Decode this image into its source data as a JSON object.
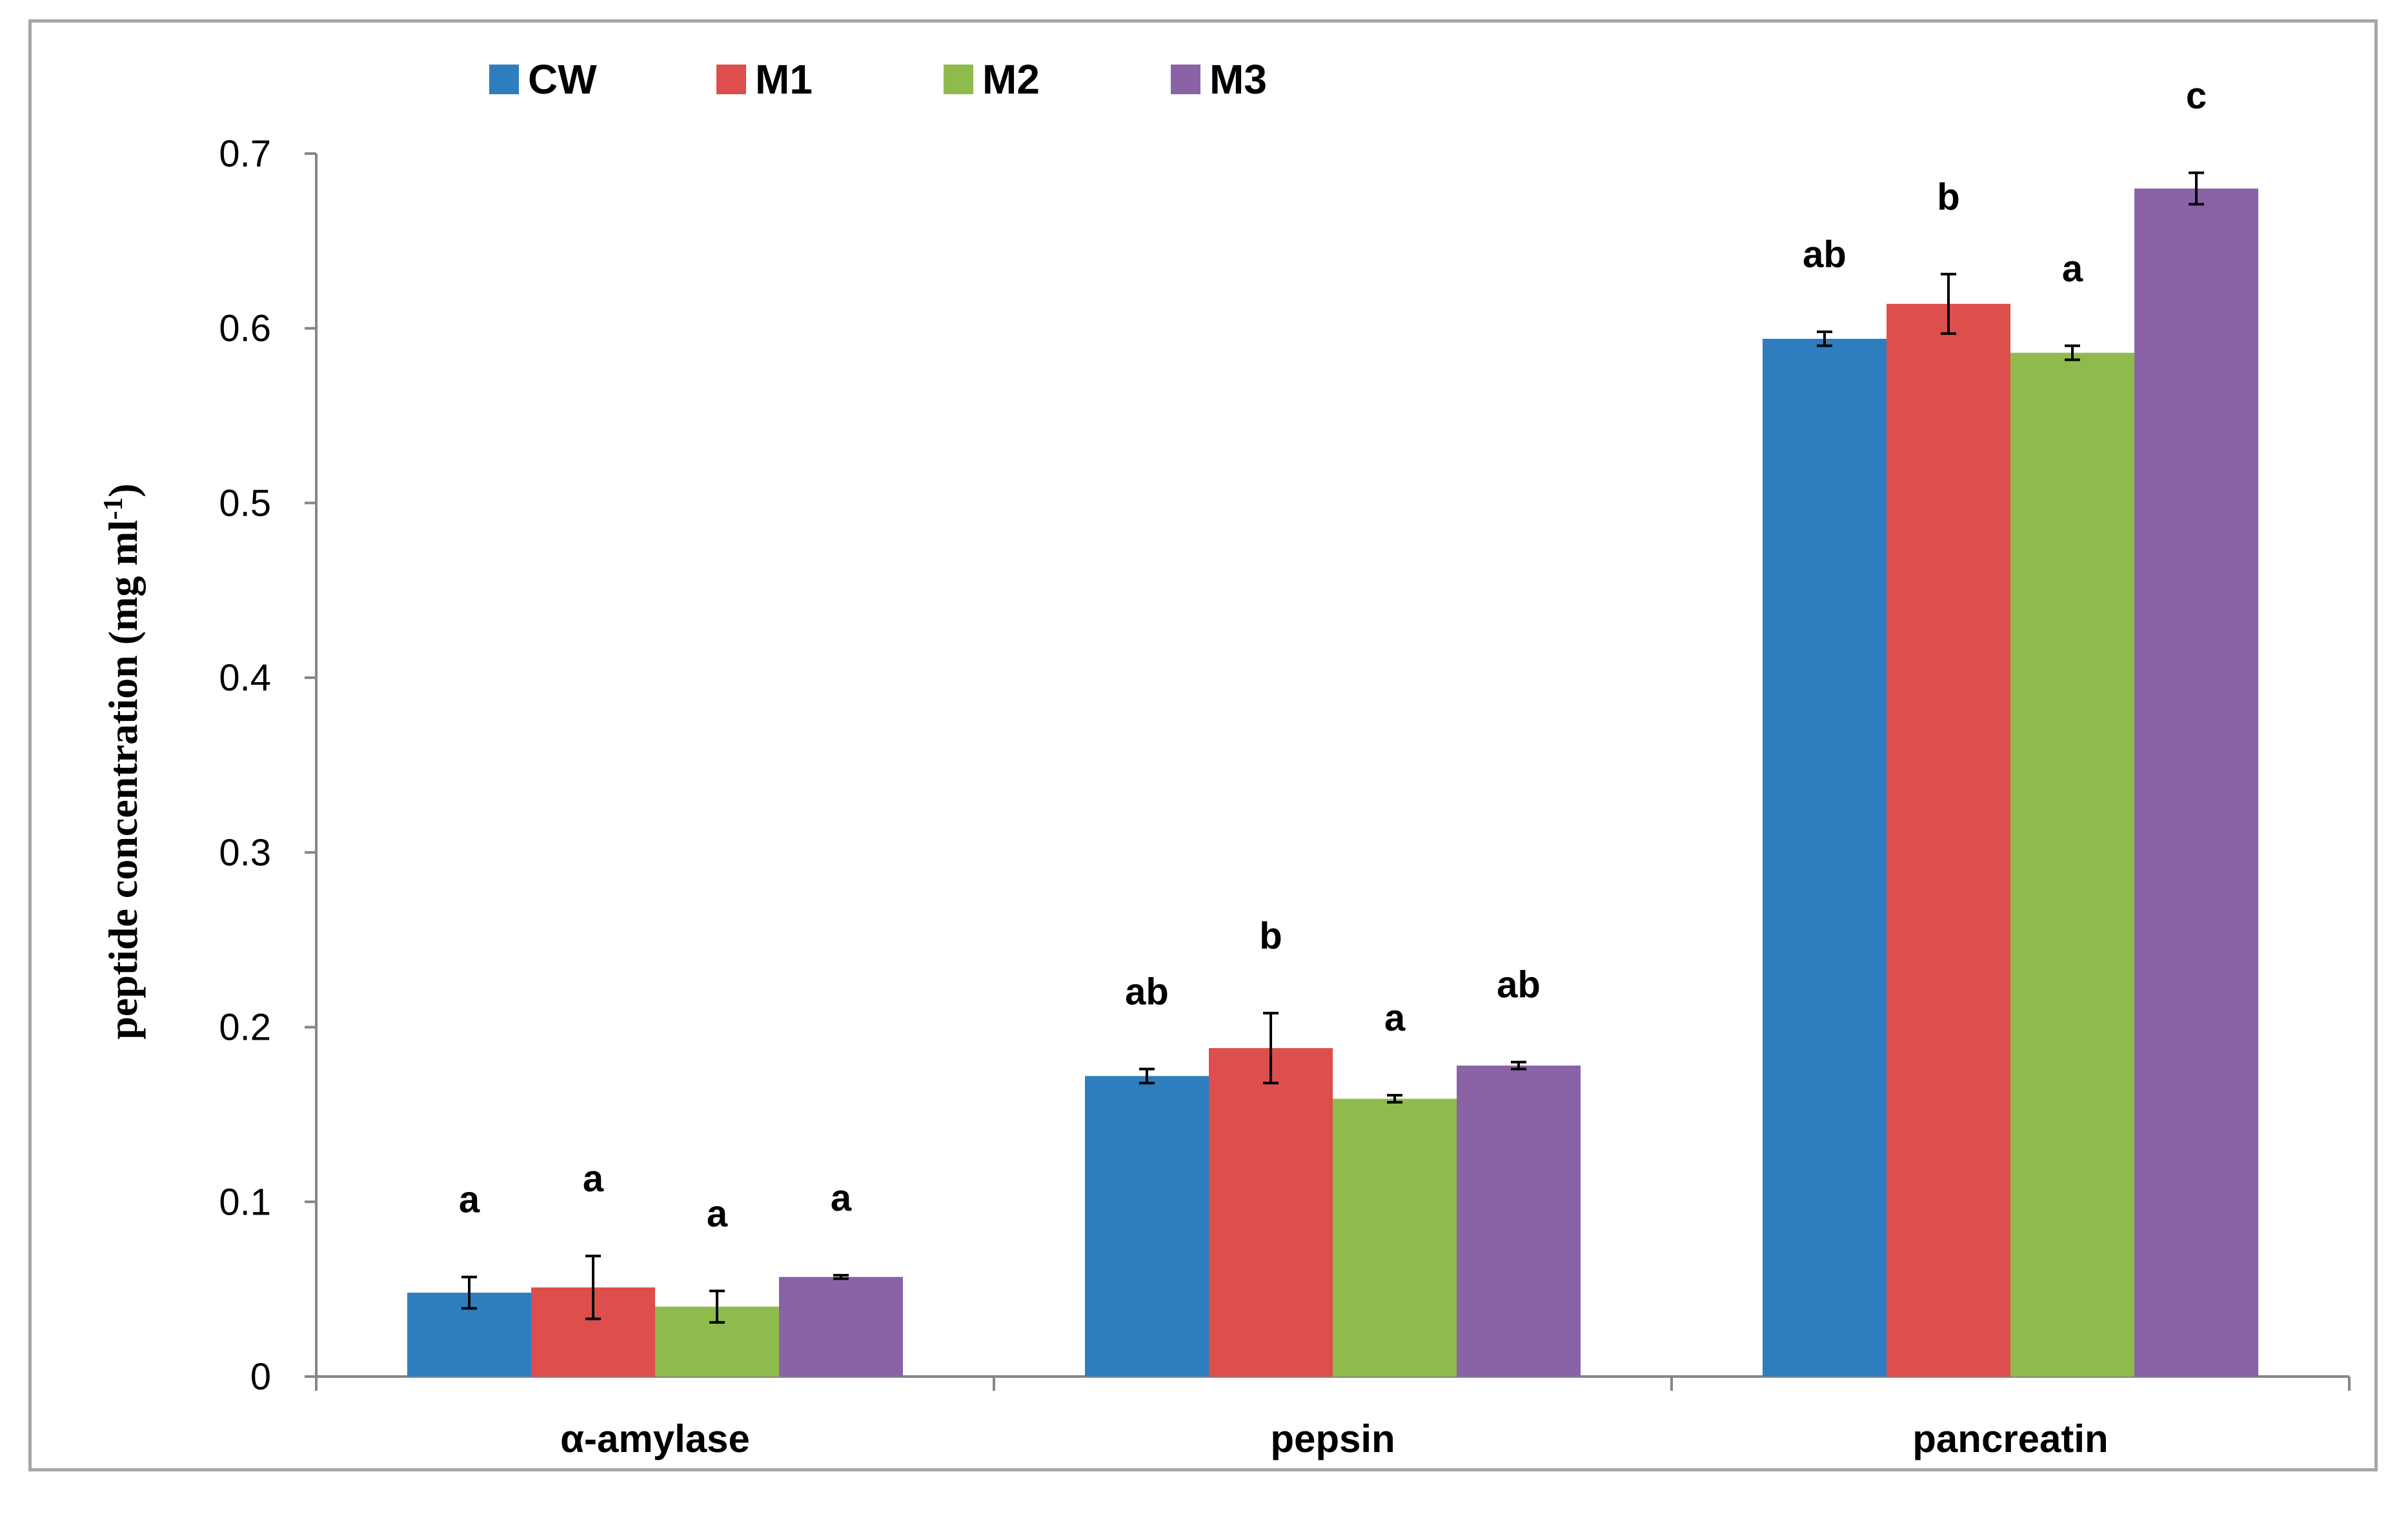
{
  "chart_data": {
    "type": "bar",
    "title": "",
    "xlabel": "",
    "ylabel": "peptide concentration (mg ml",
    "ylabel_sup": "-1",
    "ylabel_end": ")",
    "ylim": [
      0,
      0.7
    ],
    "yticks": [
      "0",
      "0.1",
      "0.2",
      "0.3",
      "0.4",
      "0.5",
      "0.6",
      "0.7"
    ],
    "categories": [
      "α-amylase",
      "pepsin",
      "pancreatin"
    ],
    "legend_position": "top-left",
    "grid": false,
    "series": [
      {
        "name": "CW",
        "color": "#2e7ebf",
        "values": [
          0.048,
          0.172,
          0.594
        ],
        "errors": [
          0.009,
          0.004,
          0.004
        ],
        "letters": [
          "a",
          "ab",
          "ab"
        ]
      },
      {
        "name": "M1",
        "color": "#dd4f4d",
        "values": [
          0.051,
          0.188,
          0.614
        ],
        "errors": [
          0.018,
          0.02,
          0.017
        ],
        "letters": [
          "a",
          "b",
          "b"
        ]
      },
      {
        "name": "M2",
        "color": "#8fbb4c",
        "values": [
          0.04,
          0.159,
          0.586
        ],
        "errors": [
          0.009,
          0.002,
          0.004
        ],
        "letters": [
          "a",
          "a",
          "a"
        ]
      },
      {
        "name": "M3",
        "color": "#8a62a6",
        "values": [
          0.057,
          0.178,
          0.68
        ],
        "errors": [
          0.001,
          0.002,
          0.009
        ],
        "letters": [
          "a",
          "ab",
          "c"
        ]
      }
    ]
  }
}
